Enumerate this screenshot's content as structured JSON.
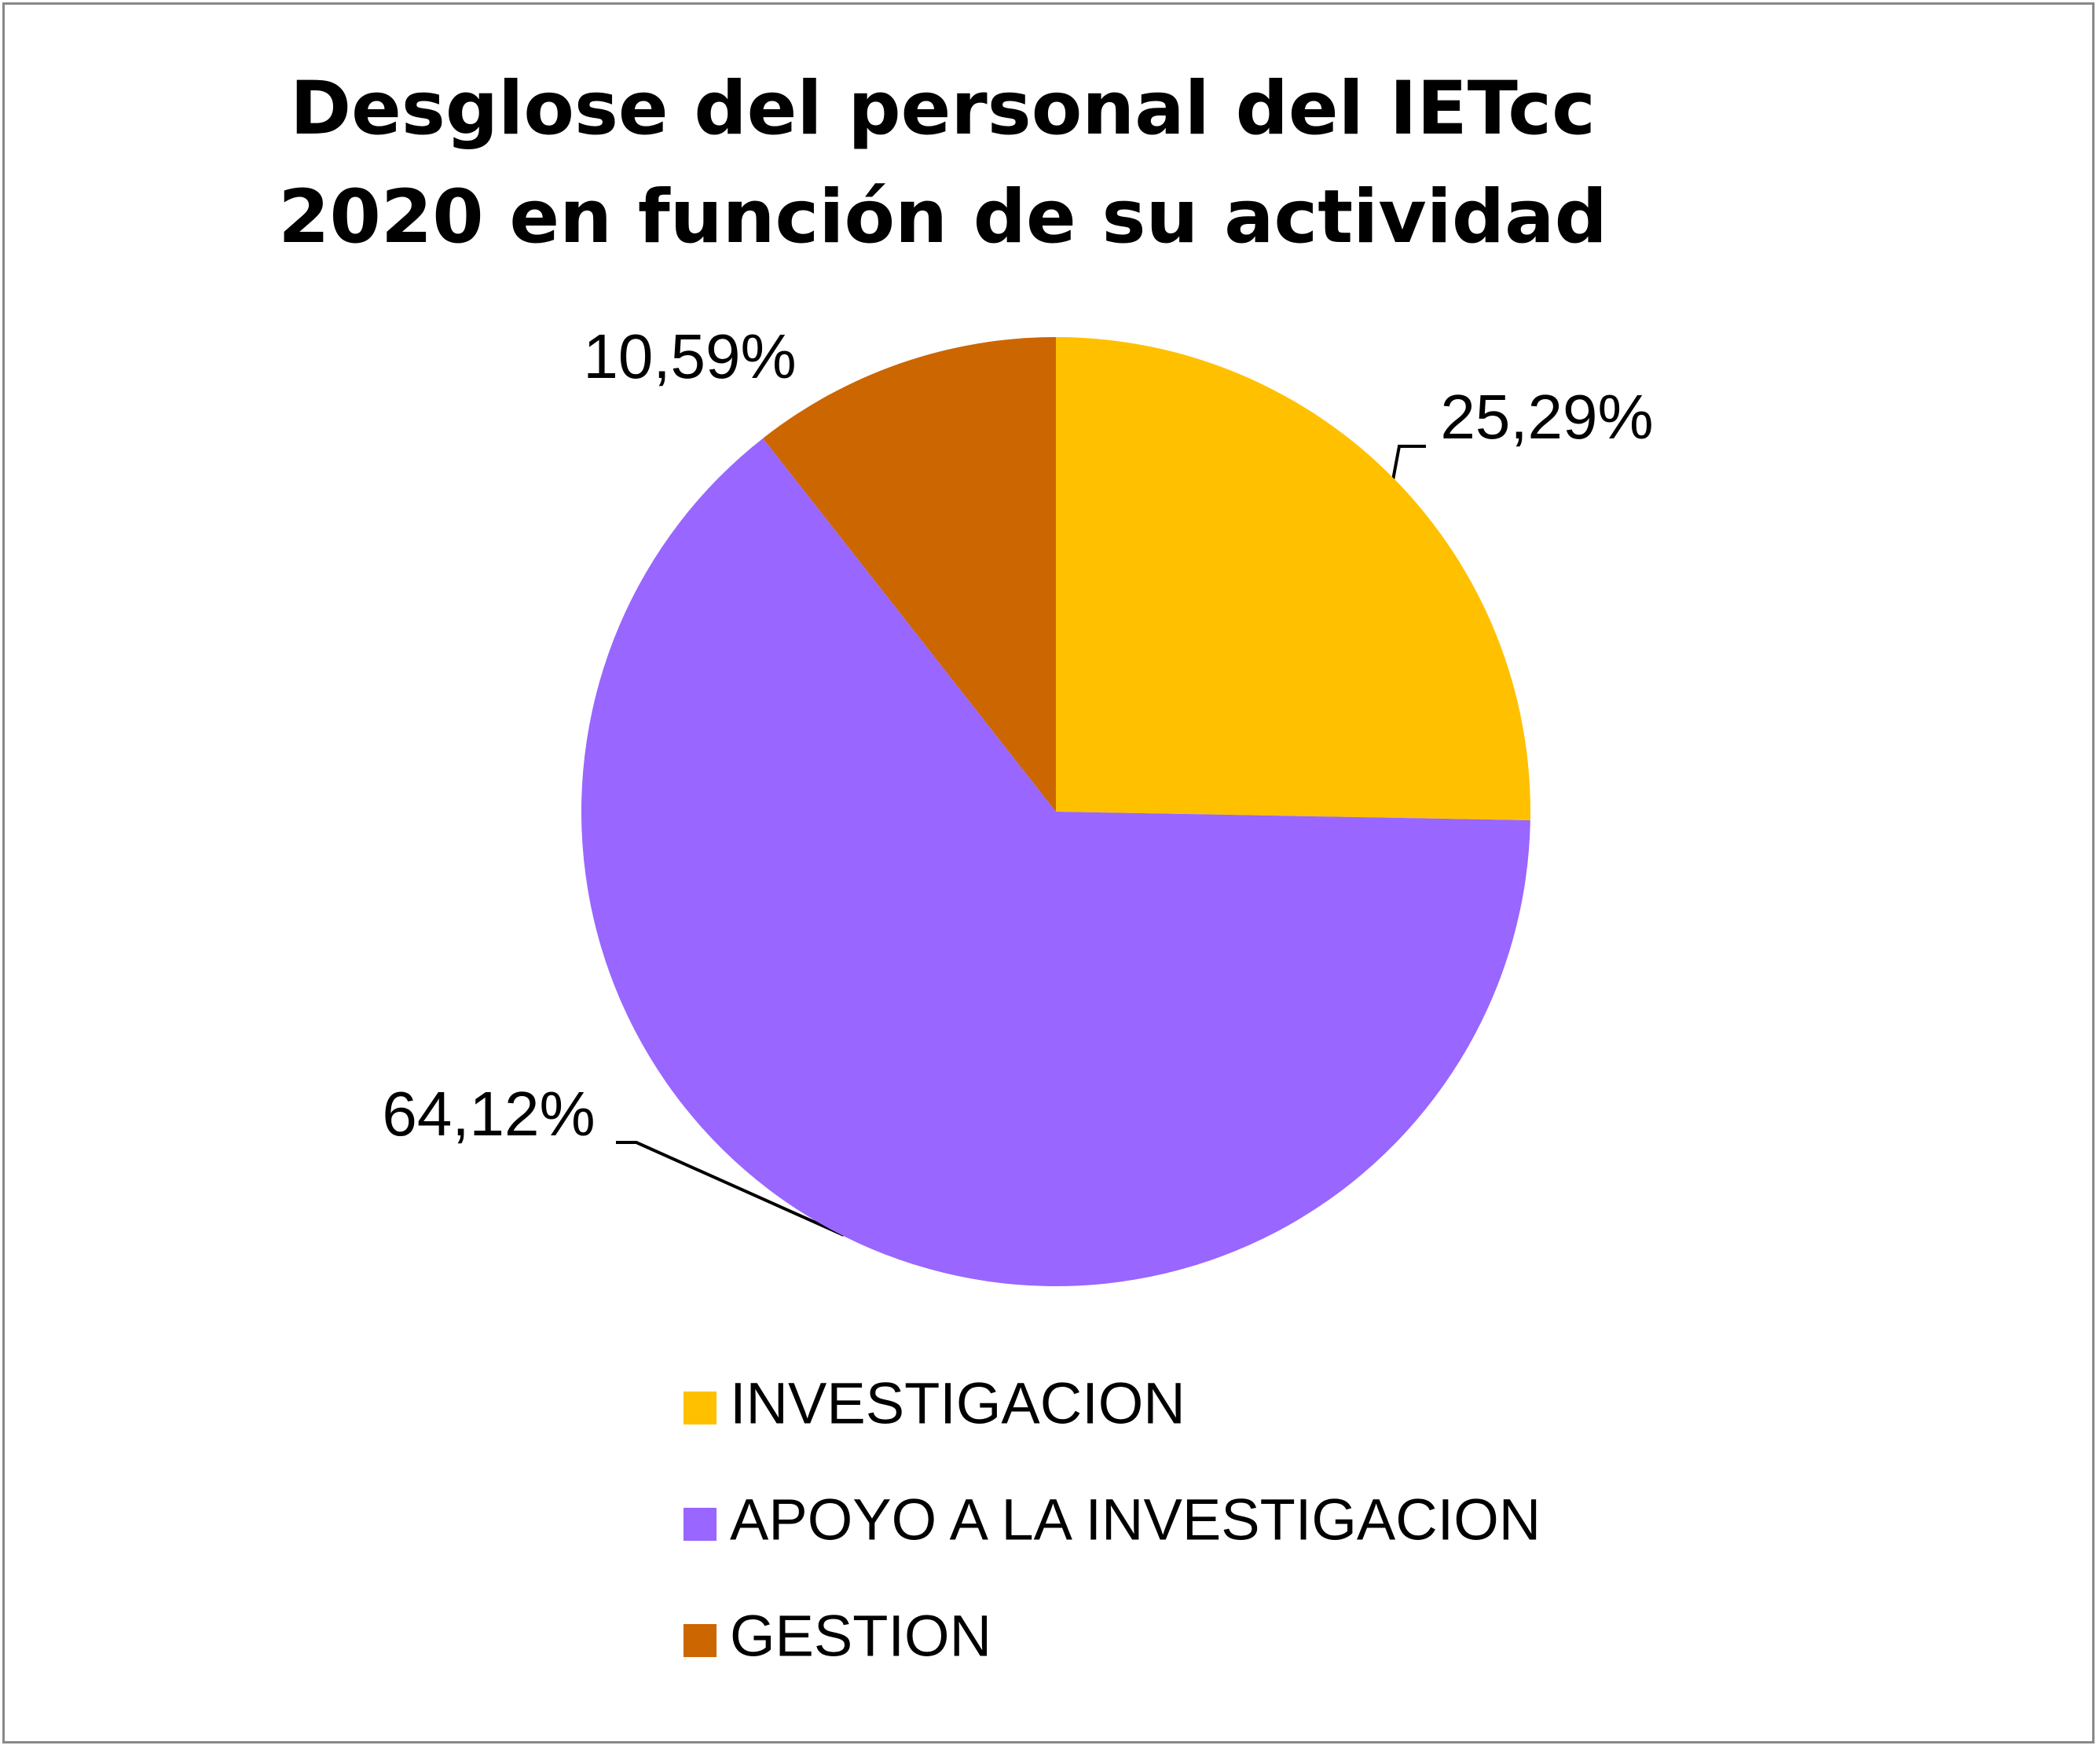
{
  "chart_data": {
    "type": "pie",
    "title": "Desglose del personal del IETcc 2020 en función de su actividad",
    "categories": [
      "INVESTIGACION",
      "APOYO A LA INVESTIGACION",
      "GESTION"
    ],
    "values": [
      25.29,
      64.12,
      10.59
    ],
    "value_labels": [
      "25,29%",
      "64,12%",
      "10,59%"
    ],
    "colors": [
      "#FFC000",
      "#9966FF",
      "#CC6600"
    ],
    "legend": "bottom"
  }
}
